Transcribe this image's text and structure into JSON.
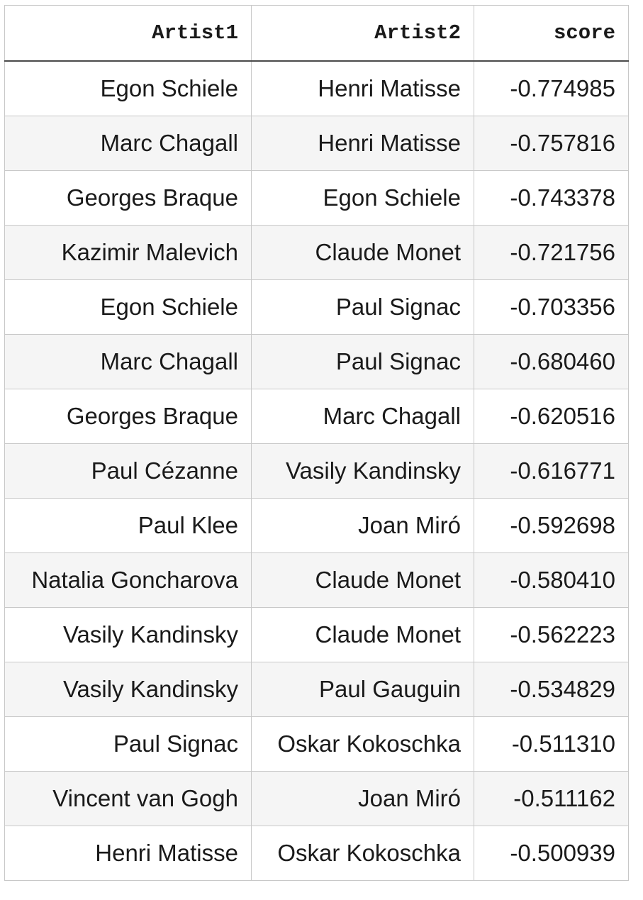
{
  "table": {
    "headers": [
      "Artist1",
      "Artist2",
      "score"
    ],
    "rows": [
      [
        "Egon Schiele",
        "Henri Matisse",
        "-0.774985"
      ],
      [
        "Marc Chagall",
        "Henri Matisse",
        "-0.757816"
      ],
      [
        "Georges Braque",
        "Egon Schiele",
        "-0.743378"
      ],
      [
        "Kazimir Malevich",
        "Claude Monet",
        "-0.721756"
      ],
      [
        "Egon Schiele",
        "Paul Signac",
        "-0.703356"
      ],
      [
        "Marc Chagall",
        "Paul Signac",
        "-0.680460"
      ],
      [
        "Georges Braque",
        "Marc Chagall",
        "-0.620516"
      ],
      [
        "Paul Cézanne",
        "Vasily Kandinsky",
        "-0.616771"
      ],
      [
        "Paul Klee",
        "Joan Miró",
        "-0.592698"
      ],
      [
        "Natalia Goncharova",
        "Claude Monet",
        "-0.580410"
      ],
      [
        "Vasily Kandinsky",
        "Claude Monet",
        "-0.562223"
      ],
      [
        "Vasily Kandinsky",
        "Paul Gauguin",
        "-0.534829"
      ],
      [
        "Paul Signac",
        "Oskar Kokoschka",
        "-0.511310"
      ],
      [
        "Vincent van Gogh",
        "Joan Miró",
        "-0.511162"
      ],
      [
        "Henri Matisse",
        "Oskar Kokoschka",
        "-0.500939"
      ]
    ]
  }
}
